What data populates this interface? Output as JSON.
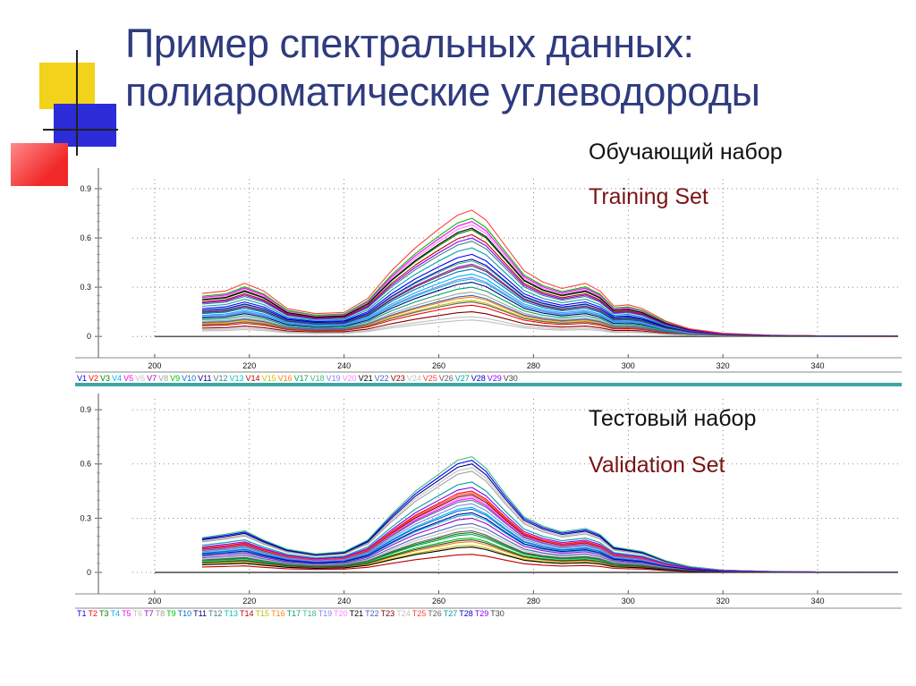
{
  "page": {
    "title_lines": [
      "Пример спектральных данных:",
      "полиароматические углеводороды"
    ],
    "training_ru": "Обучающий набор",
    "training_en": "Training Set",
    "test_ru": "Тестовый набор",
    "test_en": "Validation Set",
    "colors": {
      "title": "#2f3b7e",
      "annotation_en": "#7a1414",
      "deco_yellow": "#f2d21a",
      "deco_blue": "#2c2cd8",
      "deco_red": "#f02828"
    }
  },
  "chart_data": [
    {
      "type": "line",
      "panel": "training",
      "xlim": [
        190,
        357
      ],
      "ylim": [
        -0.01,
        0.96
      ],
      "x_ticks": [
        200,
        220,
        240,
        260,
        280,
        300,
        320,
        340
      ],
      "y_ticks": [
        0,
        0.3,
        0.6,
        0.9
      ],
      "y_tick_labels": [
        "0",
        "0.3",
        "0.6",
        "0.9"
      ],
      "grid": true,
      "legend_position": "bottom",
      "x": [
        210,
        215,
        219,
        223,
        228,
        234,
        240,
        245,
        250,
        255,
        260,
        264,
        267,
        270,
        274,
        278,
        282,
        286,
        291,
        294,
        297,
        300,
        303,
        308,
        313,
        320,
        330,
        340,
        357
      ],
      "base_shape": [
        0.34,
        0.36,
        0.42,
        0.36,
        0.22,
        0.18,
        0.19,
        0.3,
        0.52,
        0.7,
        0.85,
        0.96,
        1.0,
        0.92,
        0.72,
        0.52,
        0.43,
        0.38,
        0.42,
        0.36,
        0.24,
        0.25,
        0.22,
        0.12,
        0.06,
        0.025,
        0.01,
        0.005,
        0.003
      ],
      "series": [
        {
          "name": "V1",
          "color": "#0000ff",
          "peak": 0.5
        },
        {
          "name": "V2",
          "color": "#ff0000",
          "peak": 0.19
        },
        {
          "name": "V3",
          "color": "#008000",
          "peak": 0.65
        },
        {
          "name": "V4",
          "color": "#00b0f0",
          "peak": 0.38
        },
        {
          "name": "V5",
          "color": "#ff00ff",
          "peak": 0.7
        },
        {
          "name": "V6",
          "color": "#bfbfbf",
          "peak": 0.1
        },
        {
          "name": "V7",
          "color": "#a000c0",
          "peak": 0.44
        },
        {
          "name": "V8",
          "color": "#a0a0a0",
          "peak": 0.27
        },
        {
          "name": "V9",
          "color": "#00c000",
          "peak": 0.72
        },
        {
          "name": "V10",
          "color": "#0070c0",
          "peak": 0.41
        },
        {
          "name": "V11",
          "color": "#000080",
          "peak": 0.33
        },
        {
          "name": "V12",
          "color": "#408080",
          "peak": 0.58
        },
        {
          "name": "V13",
          "color": "#00c0c0",
          "peak": 0.35
        },
        {
          "name": "V14",
          "color": "#c00000",
          "peak": 0.62
        },
        {
          "name": "V15",
          "color": "#c0c000",
          "peak": 0.22
        },
        {
          "name": "V16",
          "color": "#ff8000",
          "peak": 0.24
        },
        {
          "name": "V17",
          "color": "#00a060",
          "peak": 0.3
        },
        {
          "name": "V18",
          "color": "#40c080",
          "peak": 0.46
        },
        {
          "name": "V19",
          "color": "#8080ff",
          "peak": 0.36
        },
        {
          "name": "V20",
          "color": "#ff80ff",
          "peak": 0.68
        },
        {
          "name": "V21",
          "color": "#000000",
          "peak": 0.66
        },
        {
          "name": "V22",
          "color": "#4060c0",
          "peak": 0.25
        },
        {
          "name": "V23",
          "color": "#800000",
          "peak": 0.15
        },
        {
          "name": "V24",
          "color": "#c0c0c0",
          "peak": 0.12
        },
        {
          "name": "V25",
          "color": "#ff4040",
          "peak": 0.77
        },
        {
          "name": "V26",
          "color": "#606060",
          "peak": 0.21
        },
        {
          "name": "V27",
          "color": "#00a0a0",
          "peak": 0.54
        },
        {
          "name": "V28",
          "color": "#0000c0",
          "peak": 0.47
        },
        {
          "name": "V29",
          "color": "#8000ff",
          "peak": 0.6
        },
        {
          "name": "V30",
          "color": "#404040",
          "peak": 0.43
        }
      ]
    },
    {
      "type": "line",
      "panel": "validation",
      "xlim": [
        190,
        357
      ],
      "ylim": [
        -0.01,
        0.96
      ],
      "x_ticks": [
        200,
        220,
        240,
        260,
        280,
        300,
        320,
        340
      ],
      "y_ticks": [
        0,
        0.3,
        0.6,
        0.9
      ],
      "y_tick_labels": [
        "0",
        "0.3",
        "0.6",
        "0.9"
      ],
      "grid": true,
      "legend_position": "bottom",
      "x": [
        210,
        215,
        219,
        223,
        228,
        234,
        240,
        245,
        250,
        255,
        260,
        264,
        267,
        270,
        274,
        278,
        282,
        286,
        291,
        294,
        297,
        300,
        303,
        308,
        313,
        320,
        330,
        340,
        357
      ],
      "base_shape": [
        0.3,
        0.33,
        0.36,
        0.28,
        0.2,
        0.16,
        0.18,
        0.28,
        0.5,
        0.7,
        0.85,
        0.97,
        1.0,
        0.9,
        0.68,
        0.48,
        0.4,
        0.35,
        0.38,
        0.33,
        0.22,
        0.2,
        0.18,
        0.1,
        0.05,
        0.02,
        0.008,
        0.004,
        0.002
      ],
      "series": [
        {
          "name": "T1",
          "color": "#0000ff",
          "peak": 0.62
        },
        {
          "name": "T2",
          "color": "#ff0000",
          "peak": 0.45
        },
        {
          "name": "T3",
          "color": "#008000",
          "peak": 0.22
        },
        {
          "name": "T4",
          "color": "#00b0f0",
          "peak": 0.36
        },
        {
          "name": "T5",
          "color": "#ff00ff",
          "peak": 0.41
        },
        {
          "name": "T6",
          "color": "#bfbfbf",
          "peak": 0.58
        },
        {
          "name": "T7",
          "color": "#a000c0",
          "peak": 0.3
        },
        {
          "name": "T8",
          "color": "#a0a0a0",
          "peak": 0.56
        },
        {
          "name": "T9",
          "color": "#00c000",
          "peak": 0.19
        },
        {
          "name": "T10",
          "color": "#0070c0",
          "peak": 0.35
        },
        {
          "name": "T11",
          "color": "#000080",
          "peak": 0.6
        },
        {
          "name": "T12",
          "color": "#408080",
          "peak": 0.4
        },
        {
          "name": "T13",
          "color": "#00c0c0",
          "peak": 0.32
        },
        {
          "name": "T14",
          "color": "#c00000",
          "peak": 0.1
        },
        {
          "name": "T15",
          "color": "#c0c000",
          "peak": 0.15
        },
        {
          "name": "T16",
          "color": "#ff8000",
          "peak": 0.17
        },
        {
          "name": "T17",
          "color": "#00a060",
          "peak": 0.21
        },
        {
          "name": "T18",
          "color": "#40c080",
          "peak": 0.64
        },
        {
          "name": "T19",
          "color": "#8080ff",
          "peak": 0.38
        },
        {
          "name": "T20",
          "color": "#ff80ff",
          "peak": 0.42
        },
        {
          "name": "T21",
          "color": "#000000",
          "peak": 0.14
        },
        {
          "name": "T22",
          "color": "#4060c0",
          "peak": 0.27
        },
        {
          "name": "T23",
          "color": "#800000",
          "peak": 0.43
        },
        {
          "name": "T24",
          "color": "#c0c0c0",
          "peak": 0.25
        },
        {
          "name": "T25",
          "color": "#ff4040",
          "peak": 0.44
        },
        {
          "name": "T26",
          "color": "#606060",
          "peak": 0.23
        },
        {
          "name": "T27",
          "color": "#00a0a0",
          "peak": 0.5
        },
        {
          "name": "T28",
          "color": "#0000c0",
          "peak": 0.33
        },
        {
          "name": "T29",
          "color": "#8000ff",
          "peak": 0.47
        },
        {
          "name": "T30",
          "color": "#404040",
          "peak": 0.18
        }
      ]
    }
  ]
}
